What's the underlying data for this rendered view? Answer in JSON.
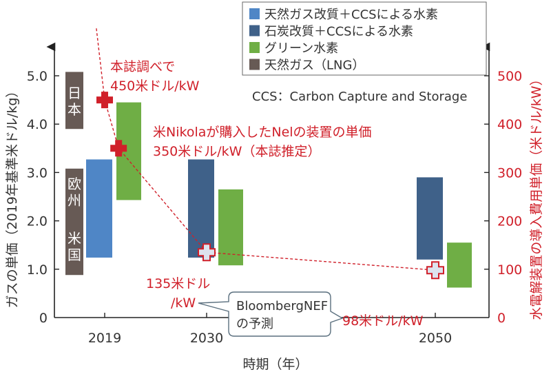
{
  "chart_data": {
    "type": "bar",
    "subtype": "floating-range",
    "xlabel": "時期（年）",
    "ylabel": "ガスの単価（2019年基準米ドル/kg）",
    "ylabel_right": "水電解装置の導入費用単価（米ドル/kW）",
    "ylim": [
      0,
      5.0
    ],
    "ylim_right": [
      0,
      500
    ],
    "yticks": [
      "1.0",
      "2.0",
      "3.0",
      "4.0",
      "5.0"
    ],
    "yticks_right": [
      "0",
      "100",
      "200",
      "300",
      "400",
      "500"
    ],
    "y_zero_label": "0",
    "categories": [
      "2019",
      "2030",
      "2050"
    ],
    "colors": {
      "smr_ccs": "#4f86c6",
      "coal_ccs": "#3f6189",
      "green": "#6fae45",
      "lng": "#675a55",
      "annotation": "#d0202a"
    },
    "legend": {
      "placement": "top-right",
      "items": [
        {
          "key": "smr_ccs",
          "label": "天然ガス改質＋CCSによる水素"
        },
        {
          "key": "coal_ccs",
          "label": "石炭改質＋CCSによる水素"
        },
        {
          "key": "green",
          "label": "グリーン水素"
        },
        {
          "key": "lng",
          "label": "天然ガス（LNG）"
        }
      ]
    },
    "note": "CCS：Carbon Capture and Storage",
    "series": [
      {
        "key": "lng",
        "name": "天然ガス（LNG）",
        "category": "2019",
        "slot": -2,
        "ranges": [
          {
            "low": 3.9,
            "high": 5.08,
            "region": "日本"
          },
          {
            "low": 0.88,
            "high": 3.08,
            "region": "欧州",
            "region2": "米国"
          }
        ]
      },
      {
        "key": "smr_ccs",
        "name": "天然ガス改質＋CCSによる水素",
        "category": "2019",
        "slot": -1,
        "ranges": [
          {
            "low": 1.24,
            "high": 3.27
          }
        ]
      },
      {
        "key": "green",
        "name": "グリーン水素",
        "category": "2019",
        "slot": 0,
        "ranges": [
          {
            "low": 2.43,
            "high": 4.45
          }
        ]
      },
      {
        "key": "coal_ccs",
        "name": "石炭改質＋CCSによる水素",
        "category": "2030",
        "slot": -1,
        "ranges": [
          {
            "low": 1.24,
            "high": 3.27
          }
        ]
      },
      {
        "key": "green",
        "name": "グリーン水素",
        "category": "2030",
        "slot": 0,
        "ranges": [
          {
            "low": 1.08,
            "high": 2.65
          }
        ]
      },
      {
        "key": "coal_ccs",
        "name": "石炭改質＋CCSによる水素",
        "category": "2050",
        "slot": -1,
        "ranges": [
          {
            "low": 1.2,
            "high": 2.9
          }
        ]
      },
      {
        "key": "green",
        "name": "グリーン水素",
        "category": "2050",
        "slot": 0,
        "ranges": [
          {
            "low": 0.62,
            "high": 1.55
          }
        ]
      }
    ],
    "electrolyzer_points": [
      {
        "x": 2019,
        "value": 450,
        "style": "filled",
        "label": [
          "本誌調べで",
          "450米ドル/kW"
        ]
      },
      {
        "x": 2020.5,
        "value": 350,
        "style": "filled",
        "label": [
          "米Nikolaが購入したNelの装置の単価",
          "350米ドル/kW（本誌推定）"
        ]
      },
      {
        "x": 2030,
        "value": 135,
        "style": "outline",
        "label": [
          "135米ドル",
          "/kW"
        ]
      },
      {
        "x": 2050,
        "value": 98,
        "style": "outline",
        "label": [
          "98米ドル/kW"
        ]
      }
    ],
    "callout": [
      "BloombergNEF",
      "の予測"
    ]
  }
}
